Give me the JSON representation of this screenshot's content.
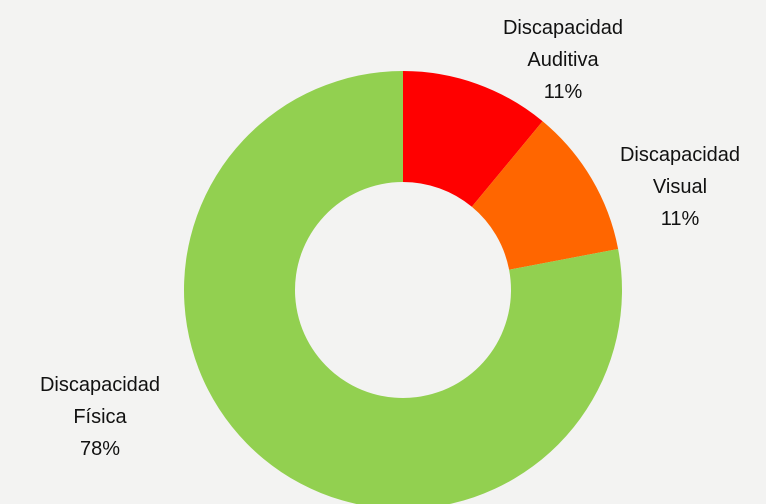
{
  "chart_data": {
    "type": "donut",
    "categories": [
      "Discapacidad Auditiva",
      "Discapacidad Visual",
      "Discapacidad Física"
    ],
    "values": [
      11,
      11,
      78
    ],
    "value_labels": [
      "11%",
      "11%",
      "78%"
    ],
    "colors": [
      "#ff0000",
      "#ff6600",
      "#92d050"
    ]
  }
}
